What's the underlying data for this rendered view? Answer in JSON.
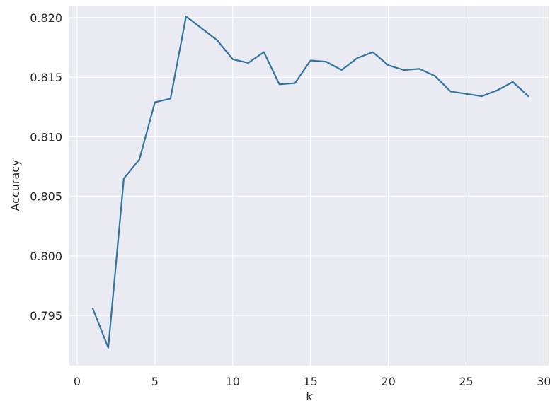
{
  "chart_data": {
    "type": "line",
    "title": "",
    "xlabel": "k",
    "ylabel": "Accuracy",
    "xlim": [
      -0.5,
      30.3
    ],
    "ylim": [
      0.7908,
      0.821
    ],
    "grid": true,
    "style": {
      "background": "#eaeaf2",
      "grid_color": "#ffffff",
      "line_color": "#3274a1"
    },
    "x_ticks": [
      0,
      5,
      10,
      15,
      20,
      25,
      30
    ],
    "x_tick_labels": [
      "0",
      "5",
      "10",
      "15",
      "20",
      "25",
      "30"
    ],
    "y_ticks": [
      0.795,
      0.8,
      0.805,
      0.81,
      0.815,
      0.82
    ],
    "y_tick_labels": [
      "0.795",
      "0.800",
      "0.805",
      "0.810",
      "0.815",
      "0.820"
    ],
    "series": [
      {
        "x": [
          1,
          2,
          3,
          4,
          5,
          6,
          7,
          8,
          9,
          10,
          11,
          12,
          13,
          14,
          15,
          16,
          17,
          18,
          19,
          20,
          21,
          22,
          23,
          24,
          25,
          26,
          27,
          28,
          29
        ],
        "y": [
          0.7956,
          0.7923,
          0.8065,
          0.8081,
          0.8129,
          0.8132,
          0.8201,
          0.8191,
          0.8181,
          0.8165,
          0.8162,
          0.8171,
          0.8144,
          0.8145,
          0.8164,
          0.8163,
          0.8156,
          0.8166,
          0.8171,
          0.816,
          0.8156,
          0.8157,
          0.8151,
          0.8138,
          0.8136,
          0.8134,
          0.8139,
          0.8146,
          0.8134
        ]
      }
    ]
  }
}
